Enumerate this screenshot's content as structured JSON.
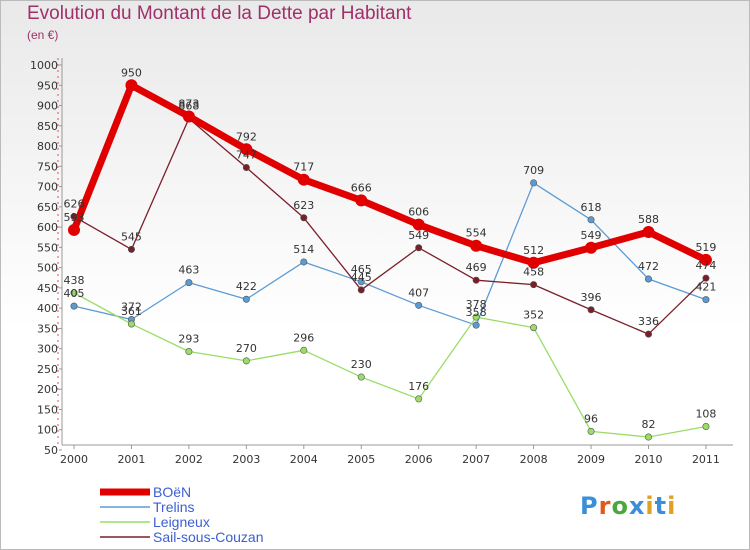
{
  "chart_data": {
    "type": "line",
    "title": "Evolution du Montant de la Dette par Habitant",
    "subtitle": "(en €)",
    "x": [
      "2000",
      "2001",
      "2002",
      "2003",
      "2004",
      "2005",
      "2006",
      "2007",
      "2008",
      "2009",
      "2010",
      "2011"
    ],
    "yticks": [
      50,
      100,
      150,
      200,
      250,
      300,
      350,
      400,
      450,
      500,
      550,
      600,
      650,
      700,
      750,
      800,
      850,
      900,
      950,
      1000
    ],
    "ylim": [
      50,
      1000
    ],
    "grid": false,
    "legend": "bottom-left",
    "series": [
      {
        "name": "BOëN",
        "color": "#e00000",
        "values": [
          593,
          950,
          873,
          792,
          717,
          666,
          606,
          554,
          512,
          549,
          588,
          519
        ]
      },
      {
        "name": "Trelins",
        "color": "#5b9bd5",
        "values": [
          405,
          372,
          463,
          422,
          514,
          465,
          407,
          358,
          709,
          618,
          472,
          421
        ]
      },
      {
        "name": "Leigneux",
        "color": "#99dd66",
        "values": [
          438,
          361,
          293,
          270,
          296,
          230,
          176,
          378,
          352,
          96,
          82,
          108
        ]
      },
      {
        "name": "Sail-sous-Couzan",
        "color": "#7a1f2a",
        "values": [
          626,
          545,
          868,
          747,
          623,
          445,
          549,
          469,
          458,
          396,
          336,
          474
        ]
      }
    ]
  },
  "logo": {
    "letters": [
      "P",
      "r",
      "o",
      "x",
      "i",
      "t",
      "i"
    ],
    "colors": [
      "#3a8fd8",
      "#e05a20",
      "#4aa83a",
      "#3a8fd8",
      "#e0a020",
      "#3a8fd8",
      "#e0a020"
    ]
  }
}
